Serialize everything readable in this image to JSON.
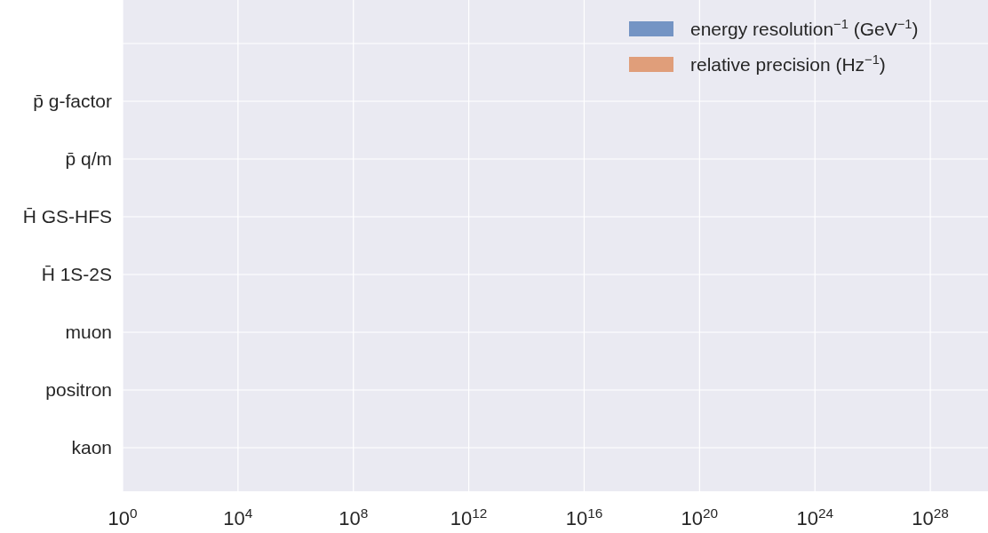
{
  "chart_data": {
    "type": "bar",
    "orientation": "horizontal",
    "categories": [
      null,
      "p̄ g-factor",
      "p̄ q/m",
      "H̄ GS-HFS",
      "H̄ 1S-2S",
      "muon",
      "positron",
      "kaon"
    ],
    "series": [
      {
        "name": "energy resolution$^{−1}$ (GeV$^{−1}$)",
        "color": "#7494c4",
        "values": [
          null,
          null,
          null,
          null,
          null,
          null,
          null,
          null
        ]
      },
      {
        "name": "relative precision (Hz$^{−1}$)",
        "color": "#e09e7a",
        "values": [
          null,
          null,
          null,
          null,
          null,
          null,
          null,
          null
        ]
      }
    ],
    "log": "x",
    "xlim": [
      1,
      1e+30
    ],
    "xticks": [
      {
        "value": 1,
        "label": "10$^{0}$"
      },
      {
        "value": 10000.0,
        "label": "10$^{4}$"
      },
      {
        "value": 100000000.0,
        "label": "10$^{8}$"
      },
      {
        "value": 1000000000000.0,
        "label": "10$^{12}$"
      },
      {
        "value": 1e+16,
        "label": "10$^{16}$"
      },
      {
        "value": 1e+20,
        "label": "10$^{20}$"
      },
      {
        "value": 1e+24,
        "label": "10$^{24}$"
      },
      {
        "value": 1e+28,
        "label": "10$^{28}$"
      }
    ],
    "grid": true,
    "legend": "top right"
  }
}
